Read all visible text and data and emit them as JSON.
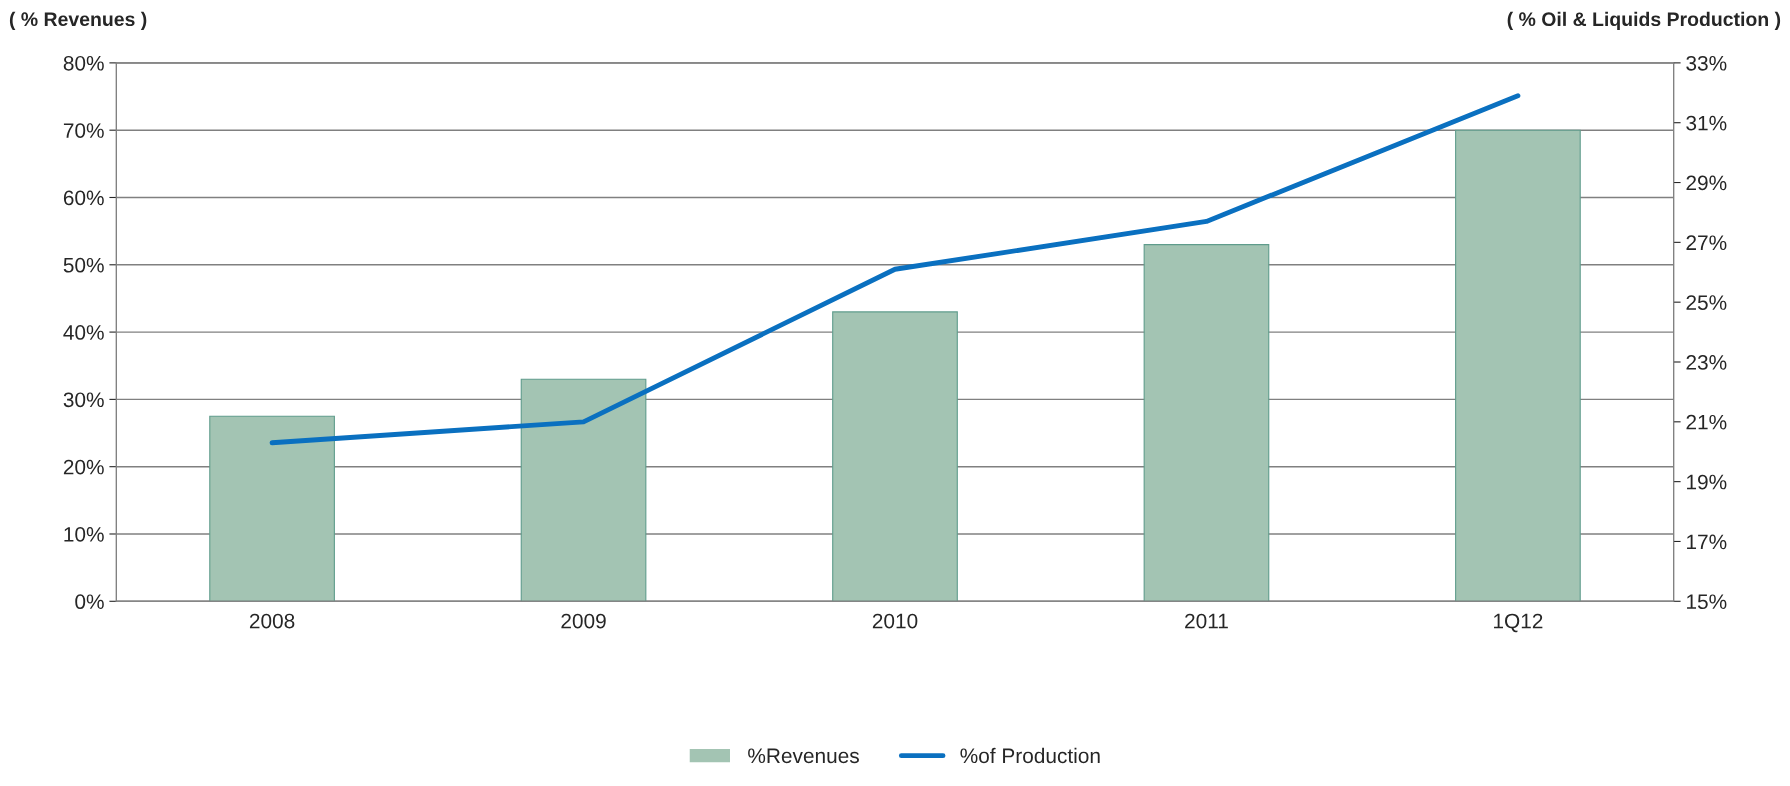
{
  "chart_data": {
    "type": "bar",
    "ylabel": "( % Revenues )",
    "y2label": "( % Oil & Liquids Production )",
    "categories": [
      "2008",
      "2009",
      "2010",
      "2011",
      "1Q12"
    ],
    "series": [
      {
        "name": "%Revenues",
        "color": "#a3c4b3",
        "values": [
          27.5,
          33,
          43,
          53,
          70
        ]
      },
      {
        "name": "%of Production",
        "type": "line",
        "axis": "y2",
        "color": "#0a70c0",
        "values": [
          20.3,
          21.0,
          26.1,
          27.7,
          31.9
        ]
      }
    ],
    "ylim": [
      0,
      80
    ],
    "yticks": [
      {
        "value": 0,
        "label": "0%"
      },
      {
        "value": 10,
        "label": "10%"
      },
      {
        "value": 20,
        "label": "20%"
      },
      {
        "value": 30,
        "label": "30%"
      },
      {
        "value": 40,
        "label": "40%"
      },
      {
        "value": 50,
        "label": "50%"
      },
      {
        "value": 60,
        "label": "60%"
      },
      {
        "value": 70,
        "label": "70%"
      },
      {
        "value": 80,
        "label": "80%"
      }
    ],
    "y2lim": [
      15,
      33
    ],
    "y2ticks": [
      {
        "value": 15,
        "label": "15%"
      },
      {
        "value": 17,
        "label": "17%"
      },
      {
        "value": 19,
        "label": "19%"
      },
      {
        "value": 21,
        "label": "21%"
      },
      {
        "value": 23,
        "label": "23%"
      },
      {
        "value": 25,
        "label": "25%"
      },
      {
        "value": 27,
        "label": "27%"
      },
      {
        "value": 29,
        "label": "29%"
      },
      {
        "value": 31,
        "label": "31%"
      },
      {
        "value": 33,
        "label": "33%"
      }
    ],
    "grid": "y",
    "legend": "bottom",
    "marker": "none"
  }
}
